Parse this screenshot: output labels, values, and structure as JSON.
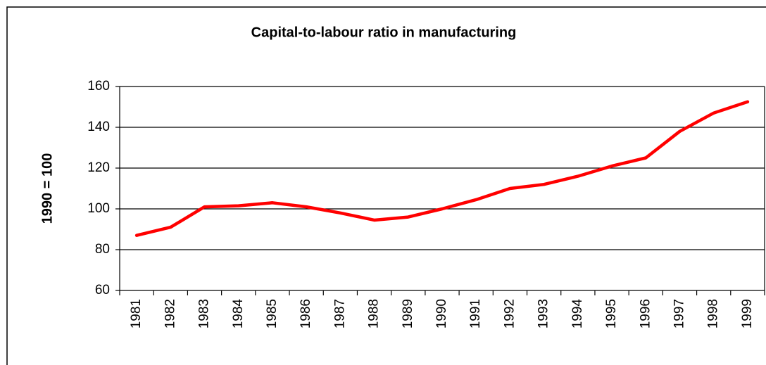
{
  "chart_data": {
    "type": "line",
    "title": "Capital-to-labour ratio in manufacturing",
    "y_label": "1990 = 100",
    "categories": [
      "1981",
      "1982",
      "1983",
      "1984",
      "1985",
      "1986",
      "1987",
      "1988",
      "1989",
      "1990",
      "1991",
      "1992",
      "1993",
      "1994",
      "1995",
      "1996",
      "1997",
      "1998",
      "1999"
    ],
    "series": [
      {
        "name": "Capital-to-labour ratio",
        "color": "#ff0000",
        "values": [
          87,
          91,
          101,
          101.5,
          103,
          101,
          98,
          94.5,
          96,
          100,
          104.5,
          110,
          112,
          116,
          121,
          125,
          138,
          147,
          152.5
        ]
      }
    ],
    "ylim": [
      60,
      160
    ],
    "yticks": [
      60,
      80,
      100,
      120,
      140,
      160
    ],
    "grid": true
  }
}
